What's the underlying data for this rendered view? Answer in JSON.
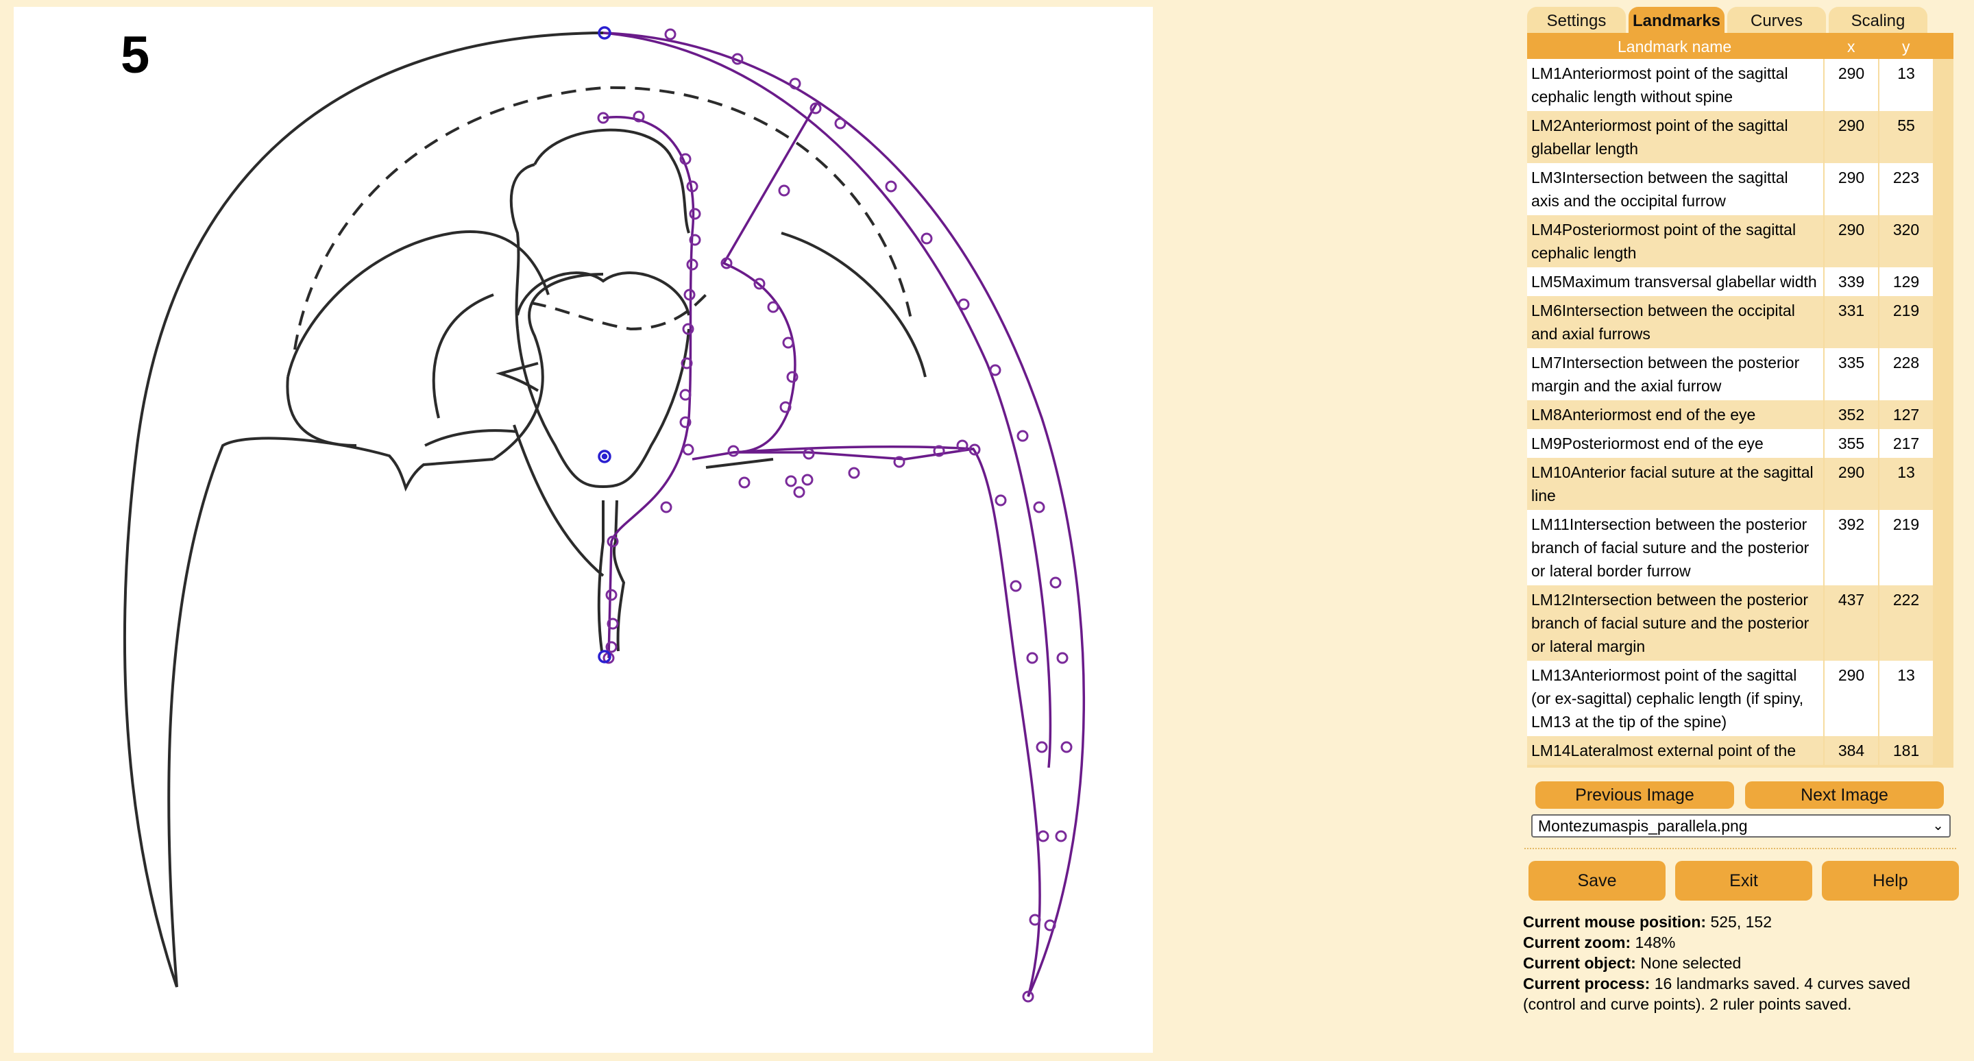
{
  "image": {
    "figure_number": "5"
  },
  "tabs": [
    {
      "label": "Settings",
      "active": false
    },
    {
      "label": "Landmarks",
      "active": true
    },
    {
      "label": "Curves",
      "active": false
    },
    {
      "label": "Scaling",
      "active": false
    }
  ],
  "table": {
    "headers": {
      "name": "Landmark name",
      "x": "x",
      "y": "y"
    },
    "rows": [
      {
        "name": "LM1Anteriormost point of the sagittal cephalic length without spine",
        "x": "290",
        "y": "13"
      },
      {
        "name": "LM2Anteriormost point of the sagittal glabellar length",
        "x": "290",
        "y": "55"
      },
      {
        "name": "LM3Intersection between the sagittal axis and the occipital furrow",
        "x": "290",
        "y": "223"
      },
      {
        "name": "LM4Posteriormost point of the sagittal cephalic length",
        "x": "290",
        "y": "320"
      },
      {
        "name": "LM5Maximum transversal glabellar width",
        "x": "339",
        "y": "129"
      },
      {
        "name": "LM6Intersection between the occipital and axial furrows",
        "x": "331",
        "y": "219"
      },
      {
        "name": "LM7Intersection between the posterior margin and the axial furrow",
        "x": "335",
        "y": "228"
      },
      {
        "name": "LM8Anteriormost end of the eye",
        "x": "352",
        "y": "127"
      },
      {
        "name": "LM9Posteriormost end of the eye",
        "x": "355",
        "y": "217"
      },
      {
        "name": "LM10Anterior facial suture at the sagittal line",
        "x": "290",
        "y": "13"
      },
      {
        "name": "LM11Intersection between the posterior branch of facial suture and the posterior or lateral border furrow",
        "x": "392",
        "y": "219"
      },
      {
        "name": "LM12Intersection between the posterior branch of facial suture and the posterior or lateral margin",
        "x": "437",
        "y": "222"
      },
      {
        "name": "LM13Anteriormost point of the sagittal (or ex-sagittal) cephalic length (if spiny, LM13 at the tip of the spine)",
        "x": "290",
        "y": "13"
      },
      {
        "name": "LM14Lateralmost external point of the",
        "x": "384",
        "y": "181"
      }
    ]
  },
  "nav": {
    "prev": "Previous Image",
    "next": "Next Image"
  },
  "file_select": {
    "value": "Montezumaspis_parallela.png"
  },
  "actions": {
    "save": "Save",
    "exit": "Exit",
    "help": "Help"
  },
  "info": {
    "mouse_label": "Current mouse position:",
    "mouse_value": " 525, 152",
    "zoom_label": "Current zoom:",
    "zoom_value": " 148%",
    "object_label": "Current object:",
    "object_value": " None selected",
    "process_label": "Current process:",
    "process_value": " 16 landmarks saved. 4 curves saved (control and curve points). 2 ruler points saved."
  },
  "colors": {
    "accent": "#efa83b",
    "panel_bg": "#fdf1d2",
    "curve": "#6a1b8a",
    "landmark": "#2a1fd0"
  }
}
